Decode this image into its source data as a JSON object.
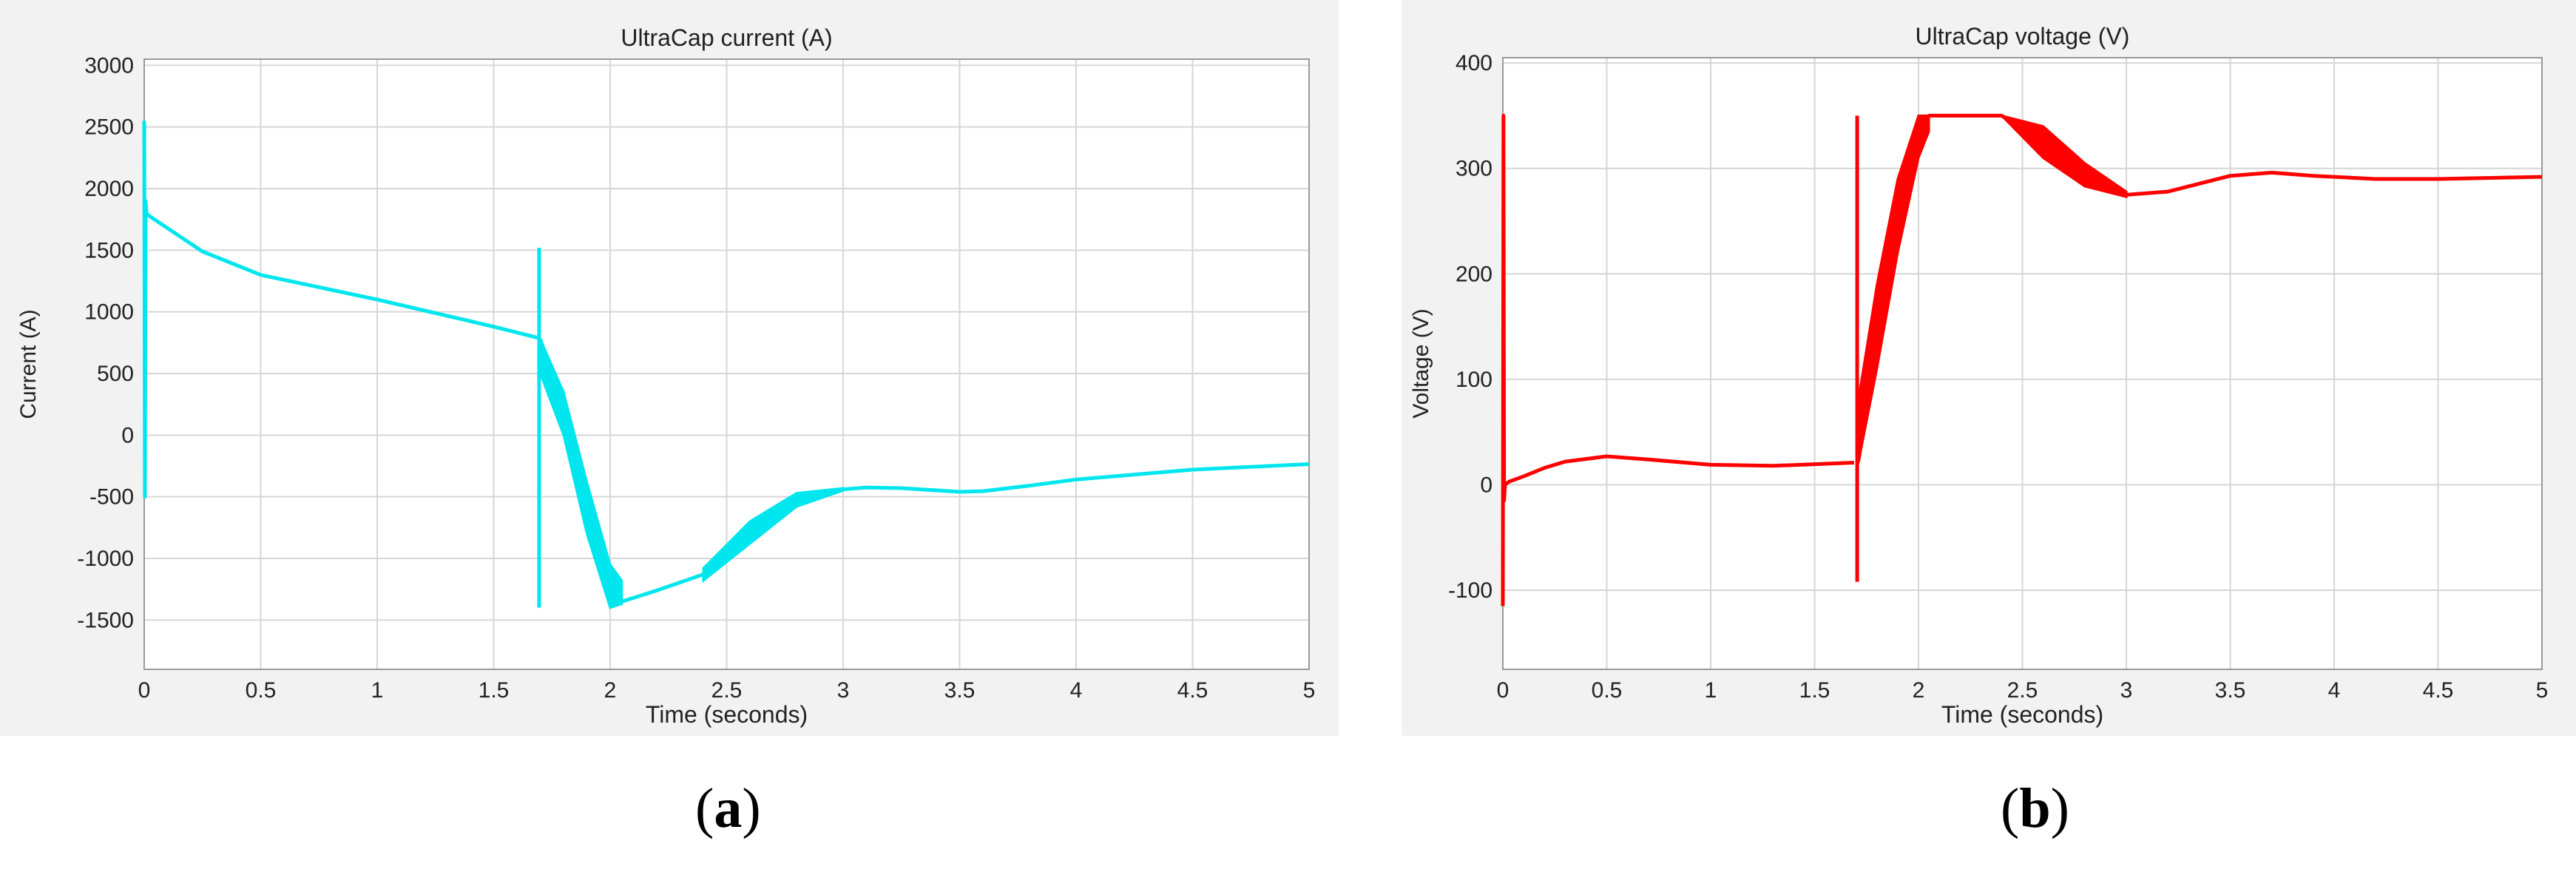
{
  "chart_data": [
    {
      "type": "line",
      "title": "UltraCap current (A)",
      "xlabel": "Time (seconds)",
      "ylabel": "Current (A)",
      "xlim": [
        0,
        5
      ],
      "ylim": [
        -1900,
        3050
      ],
      "xticks": [
        0,
        0.5,
        1,
        1.5,
        2,
        2.5,
        3,
        3.5,
        4,
        4.5,
        5
      ],
      "yticks": [
        -1500,
        -1000,
        -500,
        0,
        500,
        1000,
        1500,
        2000,
        2500,
        3000
      ],
      "grid": true,
      "color": "#00e6ee",
      "series": [
        {
          "x": [
            0,
            0.003,
            0.006,
            0.01,
            0.02,
            0.25,
            0.5,
            1.0,
            1.5,
            1.69
          ],
          "y": [
            2550,
            -500,
            1900,
            1800,
            1780,
            1490,
            1300,
            1100,
            880,
            790
          ]
        },
        {
          "x": [
            1.695,
            1.695
          ],
          "y": [
            1520,
            -1400
          ]
        },
        {
          "x": [
            1.7,
            1.8,
            1.9,
            2.0,
            2.05,
            2.2,
            2.4,
            2.6,
            2.8,
            3.0,
            3.1,
            3.25,
            3.5,
            3.6,
            3.8,
            4.0,
            4.5,
            5.0
          ],
          "y": [
            780,
            200,
            -600,
            -1250,
            -1350,
            -1260,
            -1130,
            -780,
            -520,
            -440,
            -425,
            -430,
            -460,
            -455,
            -410,
            -360,
            -280,
            -235
          ]
        }
      ],
      "envelope": {
        "x": [
          1.7,
          1.8,
          1.9,
          2.0,
          2.05
        ],
        "upper": [
          780,
          350,
          -380,
          -1050,
          -1180
        ],
        "lower": [
          500,
          0,
          -800,
          -1400,
          -1370
        ]
      },
      "envelope2": {
        "x": [
          2.4,
          2.6,
          2.8,
          3.0
        ],
        "upper": [
          -1080,
          -700,
          -470,
          -430
        ],
        "lower": [
          -1180,
          -880,
          -580,
          -450
        ]
      }
    },
    {
      "type": "line",
      "title": "UltraCap voltage (V)",
      "xlabel": "Time (seconds)",
      "ylabel": "Voltage (V)",
      "xlim": [
        0,
        5
      ],
      "ylim": [
        -175,
        405
      ],
      "xticks": [
        0,
        0.5,
        1,
        1.5,
        2,
        2.5,
        3,
        3.5,
        4,
        4.5,
        5
      ],
      "yticks": [
        -100,
        0,
        100,
        200,
        300,
        400
      ],
      "grid": true,
      "color": "#ff0000",
      "series": [
        {
          "x": [
            0,
            0.003,
            0.006,
            0.01,
            0.03,
            0.1,
            0.2,
            0.3,
            0.5,
            0.7,
            1.0,
            1.3,
            1.69
          ],
          "y": [
            -115,
            350,
            -15,
            0,
            3,
            8,
            16,
            22,
            27,
            24,
            19,
            18,
            21
          ]
        },
        {
          "x": [
            1.705,
            1.705
          ],
          "y": [
            350,
            -92
          ]
        },
        {
          "x": [
            1.71,
            1.8,
            1.9,
            2.0,
            2.05,
            2.2,
            2.4,
            2.6,
            2.8,
            3.0,
            3.2,
            3.5,
            3.7,
            3.9,
            4.2,
            4.5,
            5.0
          ],
          "y": [
            22,
            130,
            250,
            330,
            350,
            350,
            350,
            327,
            295,
            275,
            278,
            293,
            296,
            293,
            290,
            290,
            292
          ]
        }
      ],
      "envelope": {
        "x": [
          1.71,
          1.8,
          1.9,
          2.0,
          2.05
        ],
        "upper": [
          80,
          190,
          290,
          350,
          350
        ],
        "lower": [
          20,
          110,
          220,
          310,
          335
        ]
      },
      "envelope2": {
        "x": [
          2.4,
          2.6,
          2.8,
          3.0
        ],
        "upper": [
          350,
          340,
          305,
          278
        ],
        "lower": [
          350,
          310,
          283,
          273
        ]
      }
    }
  ],
  "captions": [
    "(a)",
    "(b)"
  ]
}
